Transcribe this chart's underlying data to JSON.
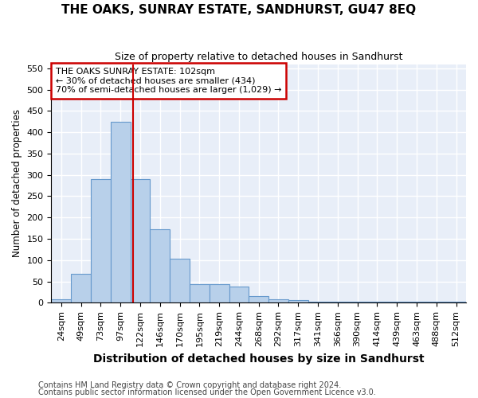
{
  "title": "THE OAKS, SUNRAY ESTATE, SANDHURST, GU47 8EQ",
  "subtitle": "Size of property relative to detached houses in Sandhurst",
  "xlabel": "Distribution of detached houses by size in Sandhurst",
  "ylabel": "Number of detached properties",
  "footnote1": "Contains HM Land Registry data © Crown copyright and database right 2024.",
  "footnote2": "Contains public sector information licensed under the Open Government Licence v3.0.",
  "bar_labels": [
    "24sqm",
    "49sqm",
    "73sqm",
    "97sqm",
    "122sqm",
    "146sqm",
    "170sqm",
    "195sqm",
    "219sqm",
    "244sqm",
    "268sqm",
    "292sqm",
    "317sqm",
    "341sqm",
    "366sqm",
    "390sqm",
    "414sqm",
    "439sqm",
    "463sqm",
    "488sqm",
    "512sqm"
  ],
  "bar_values": [
    8,
    68,
    290,
    425,
    290,
    172,
    104,
    43,
    43,
    38,
    16,
    8,
    6,
    3,
    3,
    3,
    3,
    3,
    3,
    3,
    3
  ],
  "bar_color": "#b8d0ea",
  "bar_edge_color": "#6699cc",
  "background_color": "#e8eef8",
  "grid_color": "#ffffff",
  "vline_x_idx": 3,
  "vline_color": "#cc0000",
  "annotation_line0": "THE OAKS SUNRAY ESTATE: 102sqm",
  "annotation_line1": "← 30% of detached houses are smaller (434)",
  "annotation_line2": "70% of semi-detached houses are larger (1,029) →",
  "annotation_box_color": "#ffffff",
  "annotation_box_edge": "#cc0000",
  "ylim": [
    0,
    560
  ],
  "yticks": [
    0,
    50,
    100,
    150,
    200,
    250,
    300,
    350,
    400,
    450,
    500,
    550
  ],
  "title_fontsize": 11,
  "subtitle_fontsize": 9,
  "xlabel_fontsize": 10,
  "ylabel_fontsize": 8.5,
  "tick_fontsize": 8,
  "footnote_fontsize": 7
}
